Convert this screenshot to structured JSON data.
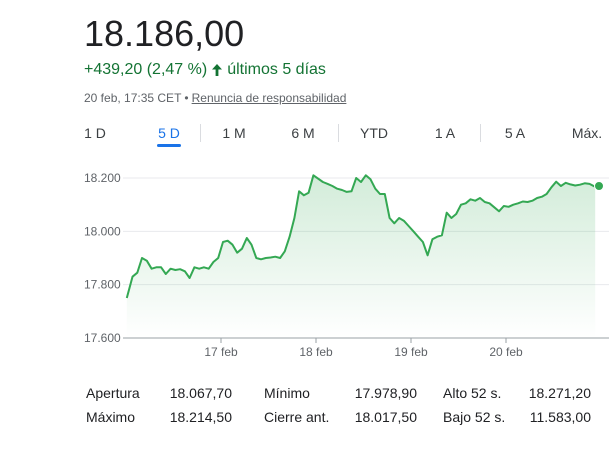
{
  "quote": {
    "price": "18.186,00",
    "change": "+439,20 (2,47 %)",
    "period": "últimos 5 días",
    "timestamp": "20 feb, 17:35 CET",
    "separator": "•",
    "disclaimer": "Renuncia de responsabilidad",
    "trend_icon": "arrow-up-icon",
    "trend_color": "#137333"
  },
  "tabs": [
    {
      "label": "1 D",
      "active": false
    },
    {
      "label": "5 D",
      "active": true
    },
    {
      "label": "1 M",
      "active": false
    },
    {
      "label": "6 M",
      "active": false
    },
    {
      "label": "YTD",
      "active": false
    },
    {
      "label": "1 A",
      "active": false
    },
    {
      "label": "5 A",
      "active": false
    },
    {
      "label": "Máx.",
      "active": false
    }
  ],
  "chart_data": {
    "type": "area",
    "y_ticks": [
      {
        "value": 18200,
        "label": "18.200"
      },
      {
        "value": 18000,
        "label": "18.000"
      },
      {
        "value": 17800,
        "label": "17.800"
      },
      {
        "value": 17600,
        "label": "17.600"
      }
    ],
    "x_ticks": [
      {
        "value": 1.0,
        "label": "17 feb"
      },
      {
        "value": 2.0,
        "label": "18 feb"
      },
      {
        "value": 3.0,
        "label": "19 feb"
      },
      {
        "value": 4.0,
        "label": "20 feb"
      }
    ],
    "ylim": [
      17600,
      18250
    ],
    "xlim": [
      0,
      5
    ],
    "line_color": "#34a853",
    "fill_color": "#e6f4ea",
    "series": [
      {
        "x": [
          0.04,
          0.1,
          0.15,
          0.2,
          0.25,
          0.3,
          0.35,
          0.4,
          0.45,
          0.5,
          0.55,
          0.6,
          0.65,
          0.7,
          0.75,
          0.8,
          0.85,
          0.9,
          0.95,
          1.0,
          1.05,
          1.1,
          1.15,
          1.2,
          1.25,
          1.3,
          1.35,
          1.4,
          1.45,
          1.5,
          1.55,
          1.6,
          1.65,
          1.7,
          1.75,
          1.8,
          1.85,
          1.9,
          1.95,
          2.0,
          2.1,
          2.15,
          2.2,
          2.25,
          2.3,
          2.35,
          2.4,
          2.45,
          2.5,
          2.55,
          2.6,
          2.65,
          2.7,
          2.75,
          2.8,
          2.85,
          2.9,
          2.95,
          3.0,
          3.05,
          3.1,
          3.15,
          3.2,
          3.25,
          3.3,
          3.35,
          3.4,
          3.45,
          3.5,
          3.55,
          3.6,
          3.65,
          3.7,
          3.75,
          3.8,
          3.85,
          3.9,
          3.95,
          4.0,
          4.05,
          4.1,
          4.15,
          4.2,
          4.25,
          4.3,
          4.35,
          4.4,
          4.45,
          4.5,
          4.55,
          4.6,
          4.65,
          4.7,
          4.75,
          4.8,
          4.85,
          4.9,
          4.96
        ],
        "y": [
          17750,
          17830,
          17845,
          17900,
          17890,
          17860,
          17865,
          17865,
          17840,
          17860,
          17855,
          17858,
          17850,
          17825,
          17865,
          17860,
          17865,
          17860,
          17885,
          17900,
          17960,
          17965,
          17950,
          17920,
          17935,
          17975,
          17950,
          17900,
          17895,
          17900,
          17902,
          17905,
          17900,
          17925,
          17980,
          18050,
          18150,
          18135,
          18145,
          18210,
          18185,
          18178,
          18170,
          18160,
          18155,
          18148,
          18150,
          18200,
          18185,
          18210,
          18195,
          18160,
          18140,
          18140,
          18050,
          18030,
          18050,
          18040,
          18020,
          18000,
          17980,
          17960,
          17910,
          17970,
          17980,
          17985,
          18070,
          18050,
          18065,
          18100,
          18105,
          18120,
          18115,
          18125,
          18110,
          18105,
          18090,
          18075,
          18095,
          18092,
          18100,
          18105,
          18112,
          18110,
          18115,
          18125,
          18130,
          18140,
          18165,
          18186,
          18170,
          18182,
          18176,
          18172,
          18175,
          18180,
          18178,
          18167
        ]
      }
    ]
  },
  "stats": [
    [
      {
        "label": "Apertura",
        "value": "18.067,70"
      },
      {
        "label": "Mínimo",
        "value": "17.978,90"
      },
      {
        "label": "Alto 52 s.",
        "value": "18.271,20"
      }
    ],
    [
      {
        "label": "Máximo",
        "value": "18.214,50"
      },
      {
        "label": "Cierre ant.",
        "value": "18.017,50"
      },
      {
        "label": "Bajo 52 s.",
        "value": "11.583,00"
      }
    ]
  ]
}
